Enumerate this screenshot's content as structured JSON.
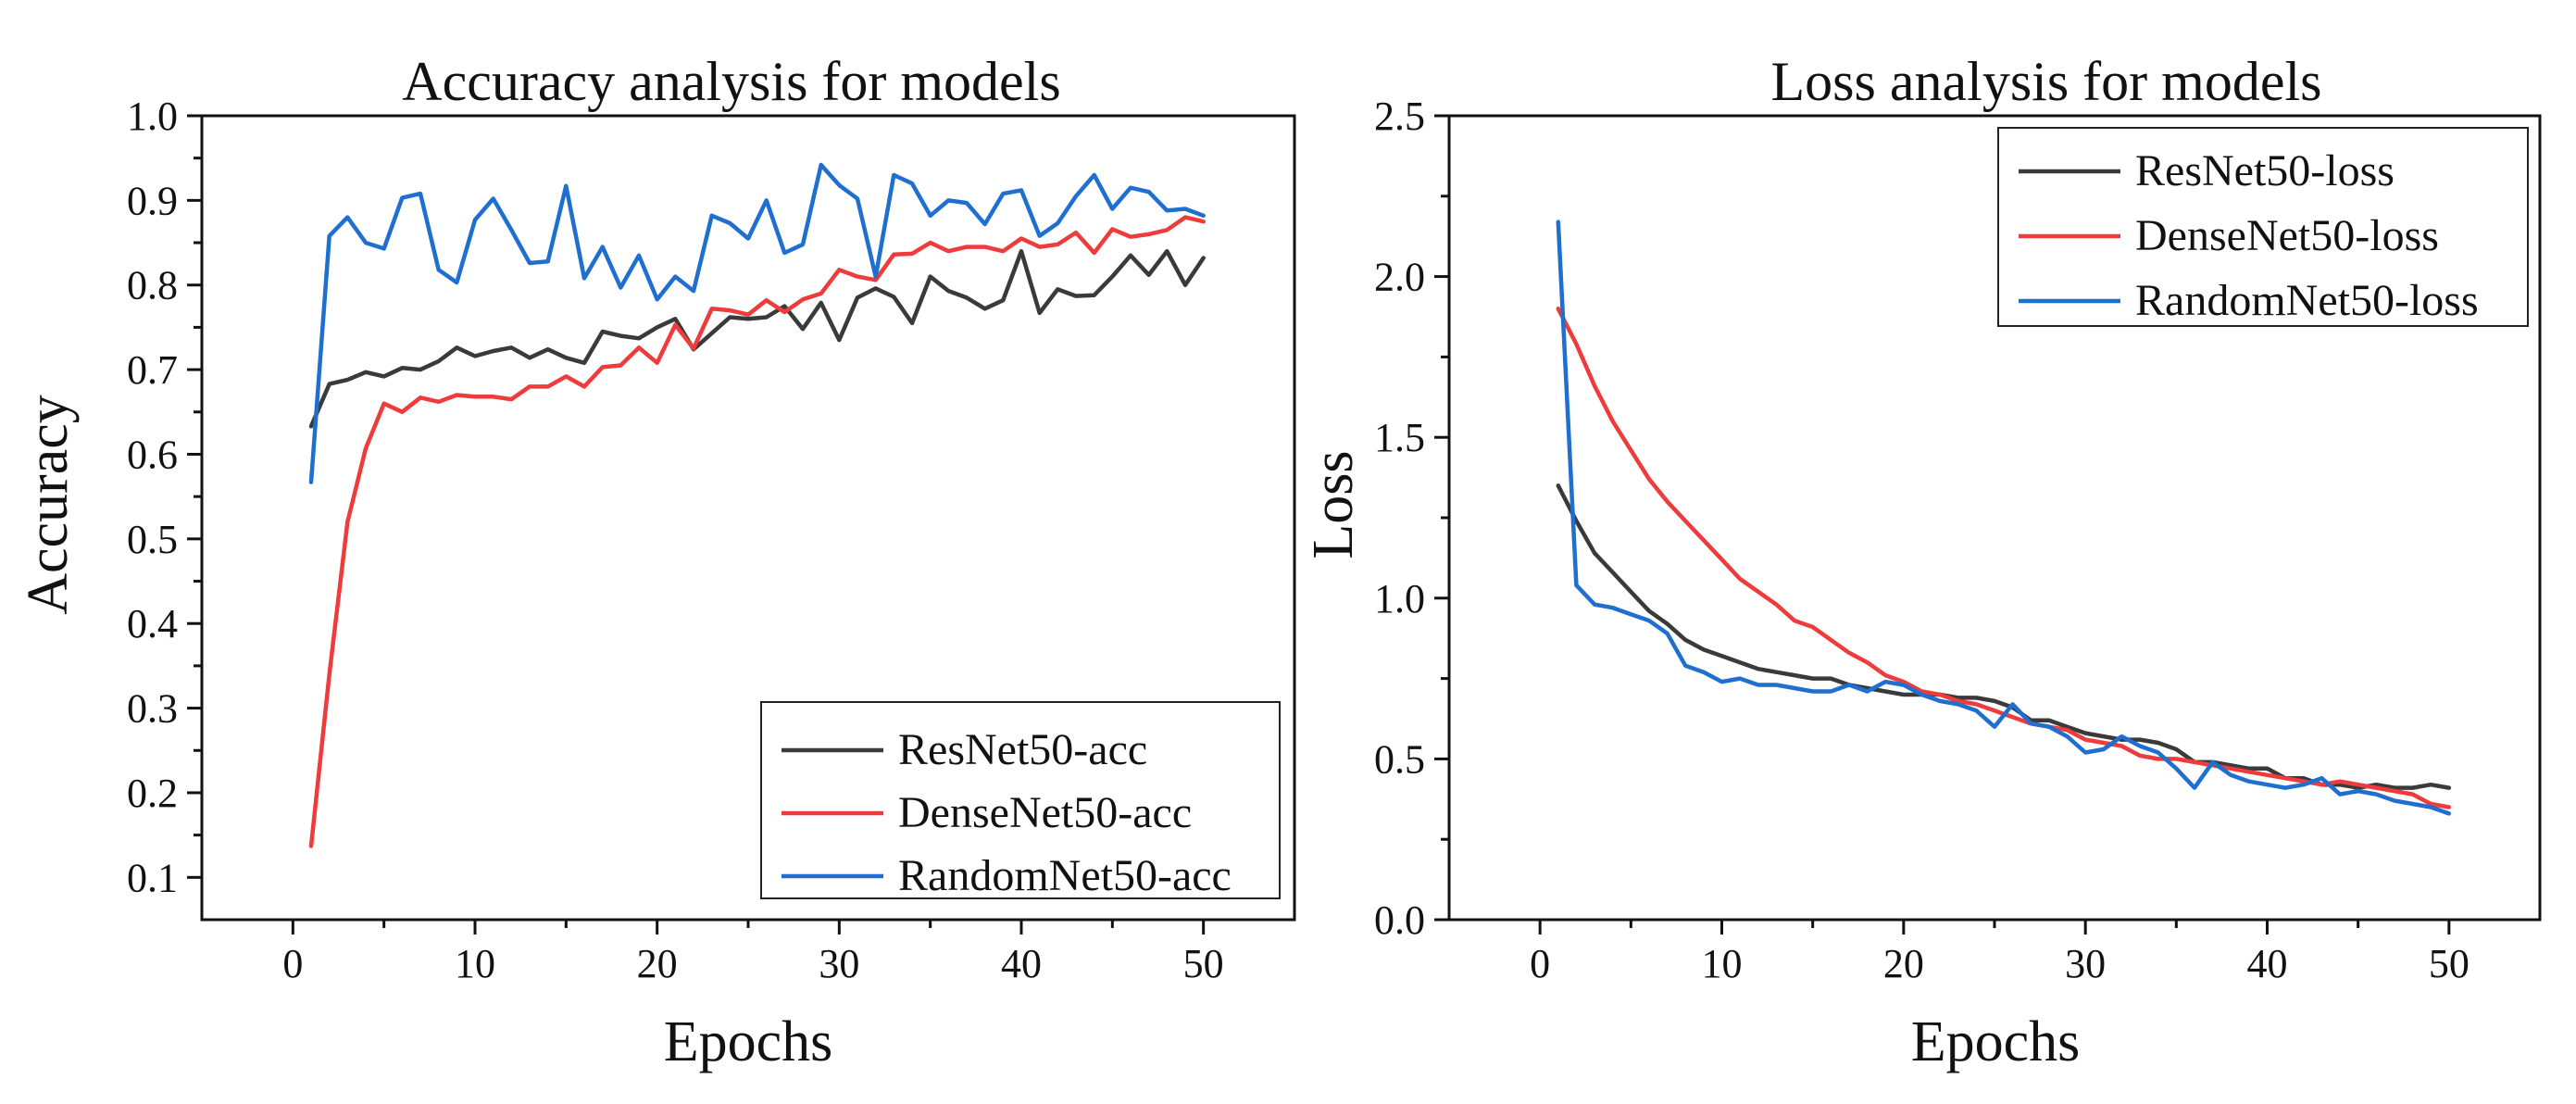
{
  "chart_data": [
    {
      "type": "line",
      "title": "Accuracy analysis for models",
      "xlabel": "Epochs",
      "ylabel": "Accuracy",
      "xlim": [
        -5,
        55
      ],
      "ylim": [
        0.05,
        1.0
      ],
      "xticks": [
        0,
        10,
        20,
        30,
        40,
        50
      ],
      "yticks": [
        0.1,
        0.2,
        0.3,
        0.4,
        0.5,
        0.6,
        0.7,
        0.8,
        0.9,
        1.0
      ],
      "xtick_labels": [
        "0",
        "10",
        "20",
        "30",
        "40",
        "50"
      ],
      "ytick_labels": [
        "0.1",
        "0.2",
        "0.3",
        "0.4",
        "0.5",
        "0.6",
        "0.7",
        "0.8",
        "0.9",
        "1.0"
      ],
      "legend_position": "bottom-right",
      "x": [
        1,
        2,
        3,
        4,
        5,
        6,
        7,
        8,
        9,
        10,
        11,
        12,
        13,
        14,
        15,
        16,
        17,
        18,
        19,
        20,
        21,
        22,
        23,
        24,
        25,
        26,
        27,
        28,
        29,
        30,
        31,
        32,
        33,
        34,
        35,
        36,
        37,
        38,
        39,
        40,
        41,
        42,
        43,
        44,
        45,
        46,
        47,
        48,
        49,
        50
      ],
      "series": [
        {
          "name": "ResNet50-acc",
          "color": "#3a3a3a",
          "values": [
            0.633,
            0.683,
            0.688,
            0.697,
            0.692,
            0.702,
            0.7,
            0.71,
            0.726,
            0.716,
            0.722,
            0.726,
            0.714,
            0.724,
            0.714,
            0.708,
            0.745,
            0.74,
            0.737,
            0.75,
            0.76,
            0.724,
            0.743,
            0.762,
            0.76,
            0.762,
            0.775,
            0.748,
            0.779,
            0.735,
            0.785,
            0.796,
            0.786,
            0.755,
            0.81,
            0.793,
            0.785,
            0.772,
            0.782,
            0.84,
            0.767,
            0.795,
            0.787,
            0.788,
            0.81,
            0.835,
            0.812,
            0.84,
            0.8,
            0.832
          ]
        },
        {
          "name": "DenseNet50-acc",
          "color": "#ee3b3b",
          "values": [
            0.137,
            0.34,
            0.52,
            0.607,
            0.66,
            0.65,
            0.667,
            0.662,
            0.67,
            0.668,
            0.668,
            0.665,
            0.68,
            0.68,
            0.692,
            0.68,
            0.703,
            0.705,
            0.726,
            0.708,
            0.753,
            0.725,
            0.772,
            0.77,
            0.765,
            0.782,
            0.768,
            0.783,
            0.79,
            0.818,
            0.81,
            0.806,
            0.836,
            0.837,
            0.85,
            0.84,
            0.845,
            0.845,
            0.84,
            0.855,
            0.845,
            0.848,
            0.862,
            0.838,
            0.866,
            0.857,
            0.86,
            0.865,
            0.88,
            0.875
          ]
        },
        {
          "name": "RandomNet50-acc",
          "color": "#1f6fd0",
          "values": [
            0.567,
            0.858,
            0.88,
            0.85,
            0.843,
            0.903,
            0.908,
            0.818,
            0.803,
            0.877,
            0.902,
            0.865,
            0.826,
            0.828,
            0.917,
            0.808,
            0.845,
            0.797,
            0.835,
            0.783,
            0.81,
            0.793,
            0.882,
            0.873,
            0.855,
            0.9,
            0.838,
            0.848,
            0.942,
            0.918,
            0.902,
            0.81,
            0.93,
            0.92,
            0.882,
            0.9,
            0.897,
            0.872,
            0.908,
            0.912,
            0.858,
            0.873,
            0.905,
            0.93,
            0.89,
            0.915,
            0.91,
            0.888,
            0.89,
            0.882
          ]
        }
      ]
    },
    {
      "type": "line",
      "title": "Loss analysis for models",
      "xlabel": "Epochs",
      "ylabel": "Loss",
      "xlim": [
        -5,
        55
      ],
      "ylim": [
        0.0,
        2.5
      ],
      "xticks": [
        0,
        10,
        20,
        30,
        40,
        50
      ],
      "yticks": [
        0.0,
        0.5,
        1.0,
        1.5,
        2.0,
        2.5
      ],
      "xtick_labels": [
        "0",
        "10",
        "20",
        "30",
        "40",
        "50"
      ],
      "ytick_labels": [
        "0.0",
        "0.5",
        "1.0",
        "1.5",
        "2.0",
        "2.5"
      ],
      "legend_position": "top-right",
      "x": [
        1,
        2,
        3,
        4,
        5,
        6,
        7,
        8,
        9,
        10,
        11,
        12,
        13,
        14,
        15,
        16,
        17,
        18,
        19,
        20,
        21,
        22,
        23,
        24,
        25,
        26,
        27,
        28,
        29,
        30,
        31,
        32,
        33,
        34,
        35,
        36,
        37,
        38,
        39,
        40,
        41,
        42,
        43,
        44,
        45,
        46,
        47,
        48,
        49,
        50
      ],
      "series": [
        {
          "name": "ResNet50-loss",
          "color": "#3a3a3a",
          "values": [
            1.35,
            1.24,
            1.14,
            1.08,
            1.02,
            0.96,
            0.92,
            0.87,
            0.84,
            0.82,
            0.8,
            0.78,
            0.77,
            0.76,
            0.75,
            0.75,
            0.73,
            0.72,
            0.71,
            0.7,
            0.7,
            0.7,
            0.69,
            0.69,
            0.68,
            0.66,
            0.62,
            0.62,
            0.6,
            0.58,
            0.57,
            0.56,
            0.56,
            0.55,
            0.53,
            0.49,
            0.49,
            0.48,
            0.47,
            0.47,
            0.44,
            0.44,
            0.42,
            0.42,
            0.41,
            0.42,
            0.41,
            0.41,
            0.42,
            0.41
          ]
        },
        {
          "name": "DenseNet50-loss",
          "color": "#ee3b3b",
          "values": [
            1.9,
            1.79,
            1.66,
            1.55,
            1.46,
            1.37,
            1.3,
            1.24,
            1.18,
            1.12,
            1.06,
            1.02,
            0.98,
            0.93,
            0.91,
            0.87,
            0.83,
            0.8,
            0.76,
            0.74,
            0.71,
            0.7,
            0.68,
            0.67,
            0.65,
            0.63,
            0.61,
            0.6,
            0.59,
            0.56,
            0.55,
            0.54,
            0.51,
            0.5,
            0.5,
            0.49,
            0.48,
            0.47,
            0.46,
            0.45,
            0.44,
            0.43,
            0.42,
            0.43,
            0.42,
            0.41,
            0.4,
            0.39,
            0.36,
            0.35
          ]
        },
        {
          "name": "RandomNet50-loss",
          "color": "#1f6fd0",
          "values": [
            2.17,
            1.04,
            0.98,
            0.97,
            0.95,
            0.93,
            0.89,
            0.79,
            0.77,
            0.74,
            0.75,
            0.73,
            0.73,
            0.72,
            0.71,
            0.71,
            0.73,
            0.71,
            0.74,
            0.73,
            0.7,
            0.68,
            0.67,
            0.65,
            0.6,
            0.67,
            0.61,
            0.6,
            0.57,
            0.52,
            0.53,
            0.57,
            0.54,
            0.52,
            0.47,
            0.41,
            0.49,
            0.45,
            0.43,
            0.42,
            0.41,
            0.42,
            0.44,
            0.39,
            0.4,
            0.39,
            0.37,
            0.36,
            0.35,
            0.33
          ]
        }
      ]
    }
  ]
}
